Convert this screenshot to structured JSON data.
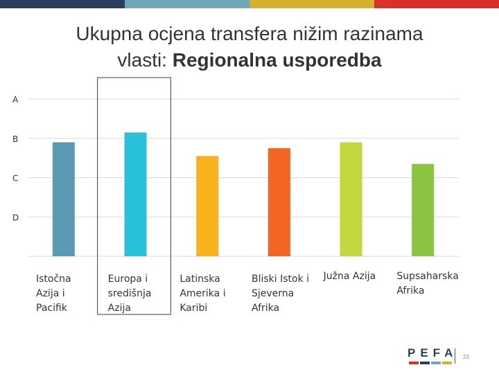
{
  "topbar_colors": [
    "#2c3e60",
    "#6fa8b8",
    "#d4b22f",
    "#d9302a"
  ],
  "title": {
    "line1": "Ukupna ocjena transfera nižim razinama",
    "line2_prefix": "vlasti: ",
    "line2_bold": "Regionalna usporedba"
  },
  "chart_data": {
    "type": "bar",
    "title": "",
    "xlabel": "",
    "ylabel": "",
    "y_tick_labels": [
      "A",
      "B",
      "C",
      "D"
    ],
    "y_ticks": [
      4,
      3,
      2,
      1
    ],
    "ylim": [
      0,
      4
    ],
    "grid": true,
    "categories": [
      [
        "Istočna",
        "Azija i",
        "Pacifik"
      ],
      [
        "Europa i",
        "središnja",
        "Azija"
      ],
      [
        "Latinska",
        "Amerika i",
        "Karibi"
      ],
      [
        "Bliski Istok i",
        "Sjeverna",
        "Afrika"
      ],
      [
        "Južna Azija"
      ],
      [
        "Supsaharska",
        "Afrika"
      ]
    ],
    "values": [
      2.9,
      3.15,
      2.55,
      2.75,
      2.9,
      2.35
    ],
    "colors": [
      "#5b9ab3",
      "#29c0dc",
      "#f8b31a",
      "#f26522",
      "#c3d83e",
      "#8bc441"
    ],
    "highlighted_category": 1
  },
  "footer": {
    "logo_text": "PEFA",
    "logo_colors": [
      "#d9302a",
      "#2c3e60",
      "#6fa8b8",
      "#d4b22f"
    ],
    "page_number": "23"
  }
}
